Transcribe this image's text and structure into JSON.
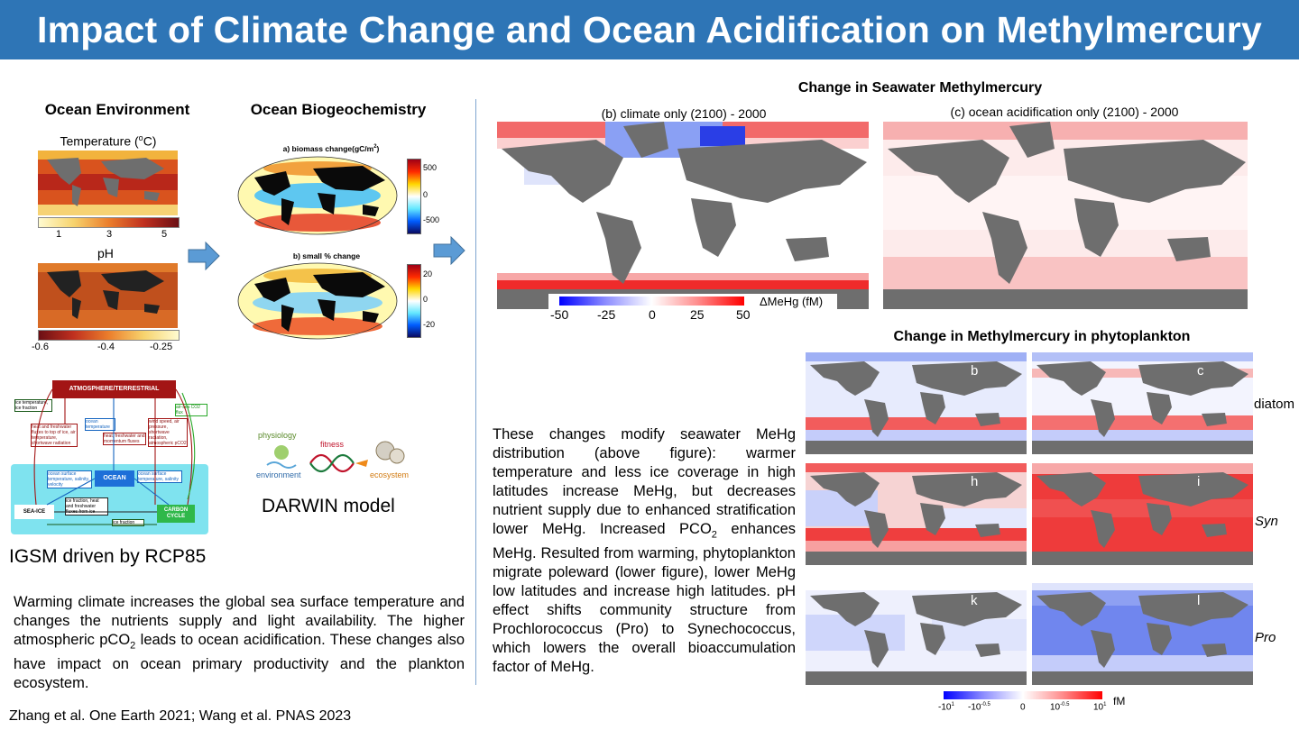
{
  "title": "Impact of Climate Change and Ocean Acidification on Methylmercury",
  "left": {
    "ocean_env": {
      "heading": "Ocean Environment",
      "temp_label_pre": "Temperature (",
      "temp_label_sup": "o",
      "temp_label_post": "C)",
      "temp_ticks": [
        "1",
        "3",
        "5"
      ],
      "ph_label": "pH",
      "ph_ticks": [
        "-0.6",
        "-0.4",
        "-0.25"
      ]
    },
    "ocean_bgc": {
      "heading": "Ocean Biogeochemistry",
      "panel_a_pre": "a) biomass change(gC/m",
      "panel_a_sup": "2",
      "panel_a_post": ")",
      "panel_a_ticks": [
        "500",
        "0",
        "-500"
      ],
      "panel_b": "b) small  % change",
      "panel_b_ticks": [
        "20",
        "0",
        "-20"
      ]
    },
    "igsm": {
      "atmos": "ATMOSPHERE/TERRESTRIAL",
      "ice_top": "ice temperature, ice fraction",
      "heat_fw": "heat and freshwater fluxes to top of ice, air temperature, shortwave radiation",
      "ocean_temp": "ocean temperature",
      "heat_fw_mom": "heat, freshwater and momentum fluxes",
      "wind": "wind speed, air pressure, shortwave radiation, atmospheric pCO2",
      "airsea": "air-sea CO2 flux",
      "ocean": "OCEAN",
      "ocean_sfc_left": "ocean surface temperature, salinity, velocity",
      "ocean_sfc_right": "ocean surface temperature, salinity",
      "ice_frac_fluxes": "ice fraction, heat and freshwater fluxes from ice",
      "ice_frac": "ice fraction",
      "seaice": "SEA-ICE",
      "carbon": "CARBON CYCLE",
      "caption": "IGSM driven by RCP85"
    },
    "darwin": {
      "physiology": "physiology",
      "fitness": "fitness",
      "environment": "environment",
      "ecosystem": "ecosystem",
      "caption": "DARWIN model"
    },
    "paragraph_pre": "Warming climate increases the global sea surface temperature and changes the nutrients supply and light availability. The higher atmospheric pCO",
    "paragraph_sub": "2",
    "paragraph_post": " leads to ocean acidification. These changes also have impact on ocean primary productivity and the plankton ecosystem.",
    "citation": "Zhang et al. One Earth 2021; Wang et al. PNAS 2023"
  },
  "right": {
    "seawater": {
      "heading": "Change in Seawater Methylmercury",
      "panel_b": "(b) climate only (2100) - 2000",
      "panel_c": "(c) ocean acidification only (2100) - 2000",
      "cb_ticks": [
        "-50",
        "-25",
        "0",
        "25",
        "50"
      ],
      "cb_label": "ΔMeHg (fM)"
    },
    "phyto": {
      "heading": "Change in Methylmercury in phytoplankton",
      "panels": [
        "b",
        "c",
        "h",
        "i",
        "k",
        "l"
      ],
      "rows": [
        "diatom",
        "Syn",
        "Pro"
      ],
      "cb_ticks": [
        {
          "base": "-10",
          "exp": "1"
        },
        {
          "base": "-10",
          "exp": "-0.5"
        },
        {
          "base": "0",
          "exp": ""
        },
        {
          "base": "10",
          "exp": "-0.5"
        },
        {
          "base": "10",
          "exp": "1"
        }
      ],
      "cb_unit": "fM"
    },
    "paragraph_pre": "These changes modify seawater MeHg distribution (above figure): warmer temperature and less ice coverage in high latitudes increase MeHg, but decreases nutrient supply due to enhanced stratification lower MeHg. Increased PCO",
    "paragraph_sub": "2",
    "paragraph_post": " enhances MeHg. Resulted from warming, phytoplankton migrate poleward (lower figure), lower MeHg low latitudes and increase high latitudes. pH effect shifts community structure from Prochlorococcus (Pro) to Synechococcus, which lowers the overall bioaccumulation factor of MeHg."
  },
  "colors": {
    "title_bg": "#2e75b6",
    "arrow": "#5b9bd5",
    "land": "#6e6e6e",
    "atmos_box": "#a31515",
    "ocean_box": "#7fe3ef"
  }
}
